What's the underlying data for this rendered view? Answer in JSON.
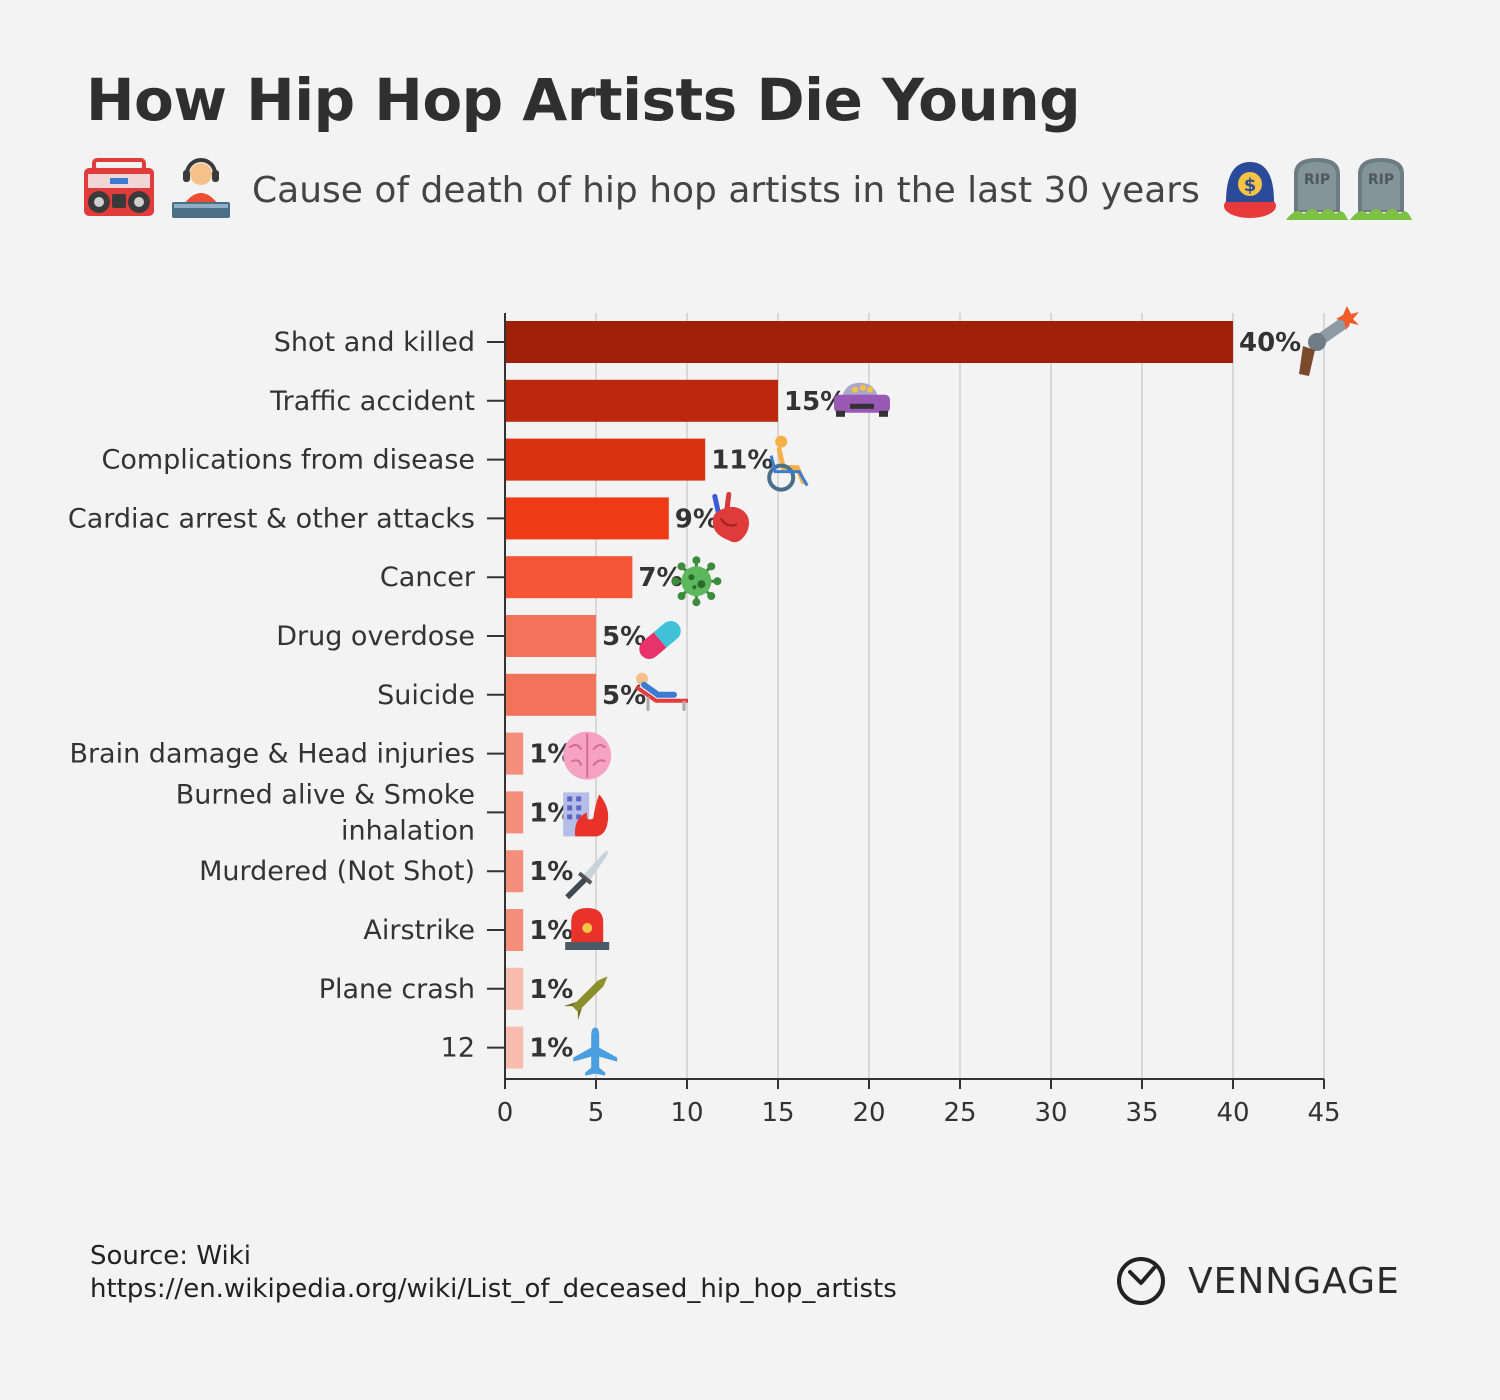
{
  "title": "How Hip Hop Artists Die Young",
  "subtitle": "Cause of death of hip hop artists in the last 30 years",
  "header_icons": {
    "left": [
      "boombox-icon",
      "dj-icon"
    ],
    "right": [
      "money-cap-icon",
      "tombstone-icon",
      "tombstone-icon"
    ],
    "tombstone_text": "RIP"
  },
  "chart_data": {
    "type": "bar",
    "orientation": "horizontal",
    "categories": [
      "Shot and killed",
      "Traffic accident",
      "Complications from disease",
      "Cardiac arrest & other attacks",
      "Cancer",
      "Drug overdose",
      "Suicide",
      "Brain damage & Head injuries",
      "Burned alive & Smoke inhalation",
      "Murdered (Not Shot)",
      "Airstrike",
      "Plane crash",
      "12"
    ],
    "values": [
      40,
      15,
      11,
      9,
      7,
      5,
      5,
      1,
      1,
      1,
      1,
      1,
      1
    ],
    "data_labels": [
      "40%",
      "15%",
      "11%",
      "9%",
      "7%",
      "5%",
      "5%",
      "1%",
      "1%",
      "1%",
      "1%",
      "1%",
      "1%"
    ],
    "bar_colors": [
      "#a1200a",
      "#bd270e",
      "#d93210",
      "#ee3a15",
      "#f55536",
      "#f2725a",
      "#f2725a",
      "#f48f7c",
      "#f48f7c",
      "#f48f7c",
      "#f48f7c",
      "#f8bcae",
      "#f8bcae"
    ],
    "icons": [
      "revolver-icon",
      "car-icon",
      "wheelchair-icon",
      "anatomical-heart-icon",
      "microbe-icon",
      "pill-icon",
      "lounger-icon",
      "brain-icon",
      "burning-building-icon",
      "knife-icon",
      "siren-icon",
      "missile-icon",
      "airplane-icon"
    ],
    "x_ticks": [
      0,
      5,
      10,
      15,
      20,
      25,
      30,
      35,
      40,
      45
    ],
    "xlim": [
      0,
      45
    ],
    "grid": true,
    "xlabel": "",
    "ylabel": ""
  },
  "footer": {
    "source_label": "Source: Wiki",
    "source_url": "https://en.wikipedia.org/wiki/List_of_deceased_hip_hop_artists",
    "brand": "VENNGAGE"
  }
}
